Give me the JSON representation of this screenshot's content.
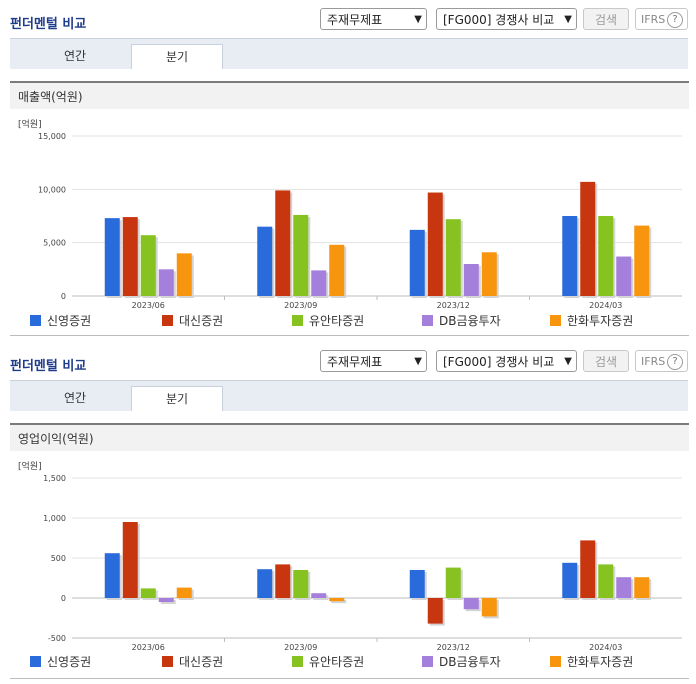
{
  "panels": [
    {
      "title": "펀더멘털 비교",
      "select1": "주재무제표",
      "select2": "[FG000] 경쟁사 비교",
      "search_label": "검색",
      "ifrs_label": "IFRS",
      "help_glyph": "?",
      "tabs": [
        "연간",
        "분기"
      ],
      "active_tab": 1,
      "metric": "매출액(억원)",
      "unit": "[억원]"
    },
    {
      "title": "펀더멘털 비교",
      "select1": "주재무제표",
      "select2": "[FG000] 경쟁사 비교",
      "search_label": "검색",
      "ifrs_label": "IFRS",
      "help_glyph": "?",
      "tabs": [
        "연간",
        "분기"
      ],
      "active_tab": 1,
      "metric": "영업이익(억원)",
      "unit": "[억원]"
    }
  ],
  "chart_data": [
    {
      "type": "bar",
      "categories": [
        "2023/06",
        "2023/09",
        "2023/12",
        "2024/03"
      ],
      "ylim": [
        0,
        15000
      ],
      "yticks": [
        0,
        5000,
        10000,
        15000
      ],
      "ytick_labels": [
        "0",
        "5,000",
        "10,000",
        "15,000"
      ],
      "ylabel": "[억원]",
      "legend_position": "bottom",
      "series": [
        {
          "name": "신영증권",
          "color": "#2a6bdc",
          "values": [
            7300,
            6500,
            6200,
            7500
          ]
        },
        {
          "name": "대신증권",
          "color": "#c8360f",
          "values": [
            7400,
            9900,
            9700,
            10700
          ]
        },
        {
          "name": "유안타증권",
          "color": "#86c321",
          "values": [
            5700,
            7600,
            7200,
            7500
          ]
        },
        {
          "name": "DB금융투자",
          "color": "#a57fdc",
          "values": [
            2500,
            2400,
            3000,
            3700
          ]
        },
        {
          "name": "한화투자증권",
          "color": "#f7950f",
          "values": [
            4000,
            4800,
            4100,
            6600
          ]
        }
      ]
    },
    {
      "type": "bar",
      "categories": [
        "2023/06",
        "2023/09",
        "2023/12",
        "2024/03"
      ],
      "ylim": [
        -500,
        1500
      ],
      "yticks": [
        -500,
        0,
        500,
        1000,
        1500
      ],
      "ytick_labels": [
        "-500",
        "0",
        "500",
        "1,000",
        "1,500"
      ],
      "ylabel": "[억원]",
      "legend_position": "bottom",
      "series": [
        {
          "name": "신영증권",
          "color": "#2a6bdc",
          "values": [
            560,
            360,
            350,
            440
          ]
        },
        {
          "name": "대신증권",
          "color": "#c8360f",
          "values": [
            950,
            420,
            -320,
            720
          ]
        },
        {
          "name": "유안타증권",
          "color": "#86c321",
          "values": [
            120,
            350,
            380,
            420
          ]
        },
        {
          "name": "DB금융투자",
          "color": "#a57fdc",
          "values": [
            -50,
            60,
            -140,
            260
          ]
        },
        {
          "name": "한화투자증권",
          "color": "#f7950f",
          "values": [
            130,
            -40,
            -230,
            260
          ]
        }
      ]
    }
  ]
}
